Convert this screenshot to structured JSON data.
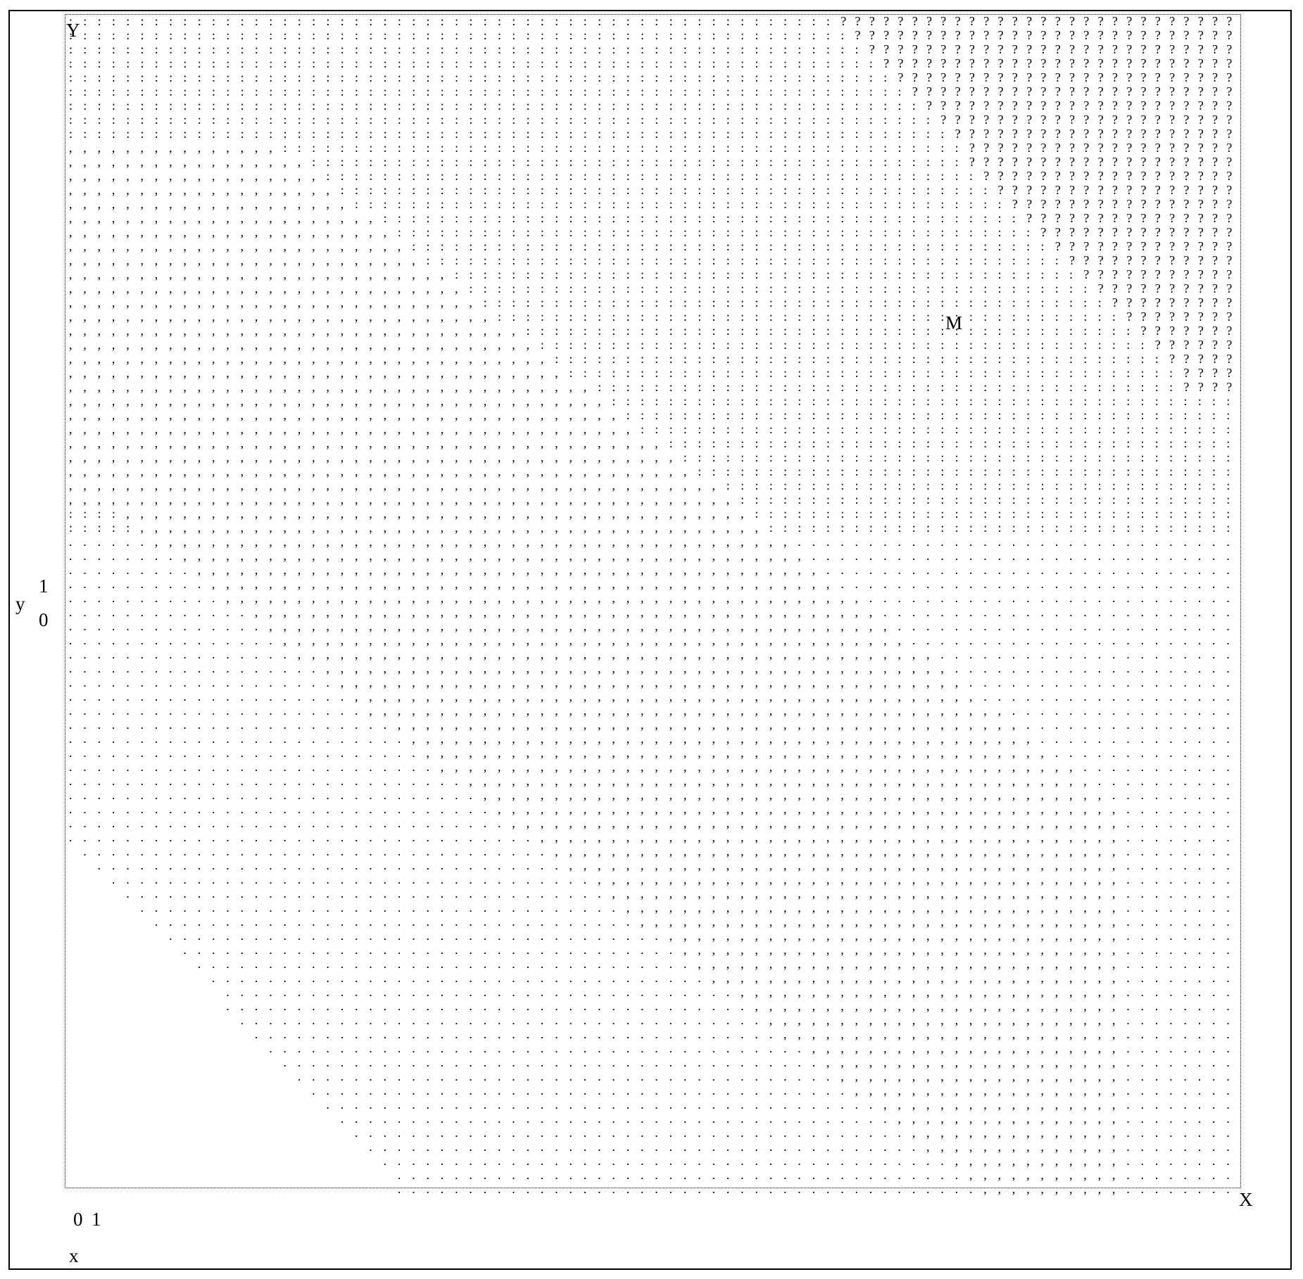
{
  "diagram": {
    "axis_labels": {
      "x": "x",
      "y": "y",
      "x_end": "X",
      "y_end": "Y"
    },
    "x_ticks": [
      "0",
      "1"
    ],
    "y_ticks": [
      "1",
      "0"
    ],
    "marker": "M",
    "grid": {
      "cols": 84,
      "rows": 85
    },
    "legend": {
      "empty_region": "",
      "period_symbol": ".",
      "colon_symbol": ":",
      "comma_symbol": ",",
      "query_symbol": "?"
    },
    "colors": {
      "ink": "#000000",
      "background": "#ffffff"
    }
  }
}
